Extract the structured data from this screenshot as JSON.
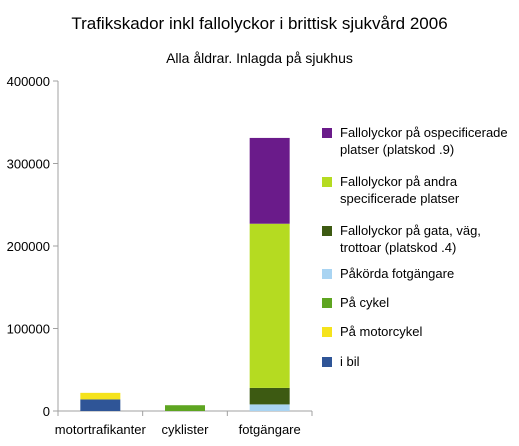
{
  "chart_data": {
    "type": "bar",
    "stacked": true,
    "title": "Trafikskador inkl fallolyckor i brittisk sjukvård 2006",
    "subtitle": "Alla åldrar. Inlagda på sjukhus",
    "xlabel": "",
    "ylabel": "",
    "ylim": [
      0,
      400000
    ],
    "yticks": [
      "0",
      "100000",
      "200000",
      "300000",
      "400000"
    ],
    "categories": [
      "motortrafikanter",
      "cyklister",
      "fotgängare"
    ],
    "grid": false,
    "legend_position": "right",
    "series": [
      {
        "name": "i bil",
        "color": "#2f5597",
        "values": [
          14000,
          0,
          0
        ]
      },
      {
        "name": "På motorcykel",
        "color": "#f5e31c",
        "values": [
          8000,
          0,
          0
        ]
      },
      {
        "name": "På cykel",
        "color": "#5ea521",
        "values": [
          0,
          7000,
          0
        ]
      },
      {
        "name": "Påkörda fotgängare",
        "color": "#a9d4f2",
        "values": [
          0,
          0,
          8000
        ]
      },
      {
        "name": "Fallolyckor på gata, väg, trottoar (platskod .4)",
        "color": "#3d5a12",
        "values": [
          0,
          0,
          20000
        ]
      },
      {
        "name": "Fallolyckor på andra specificerade platser",
        "color": "#b5db21",
        "values": [
          0,
          0,
          199000
        ]
      },
      {
        "name": "Fallolyckor på ospecificerade platser (platskod .9)",
        "color": "#6a1b8a",
        "values": [
          0,
          0,
          104000
        ]
      }
    ]
  }
}
